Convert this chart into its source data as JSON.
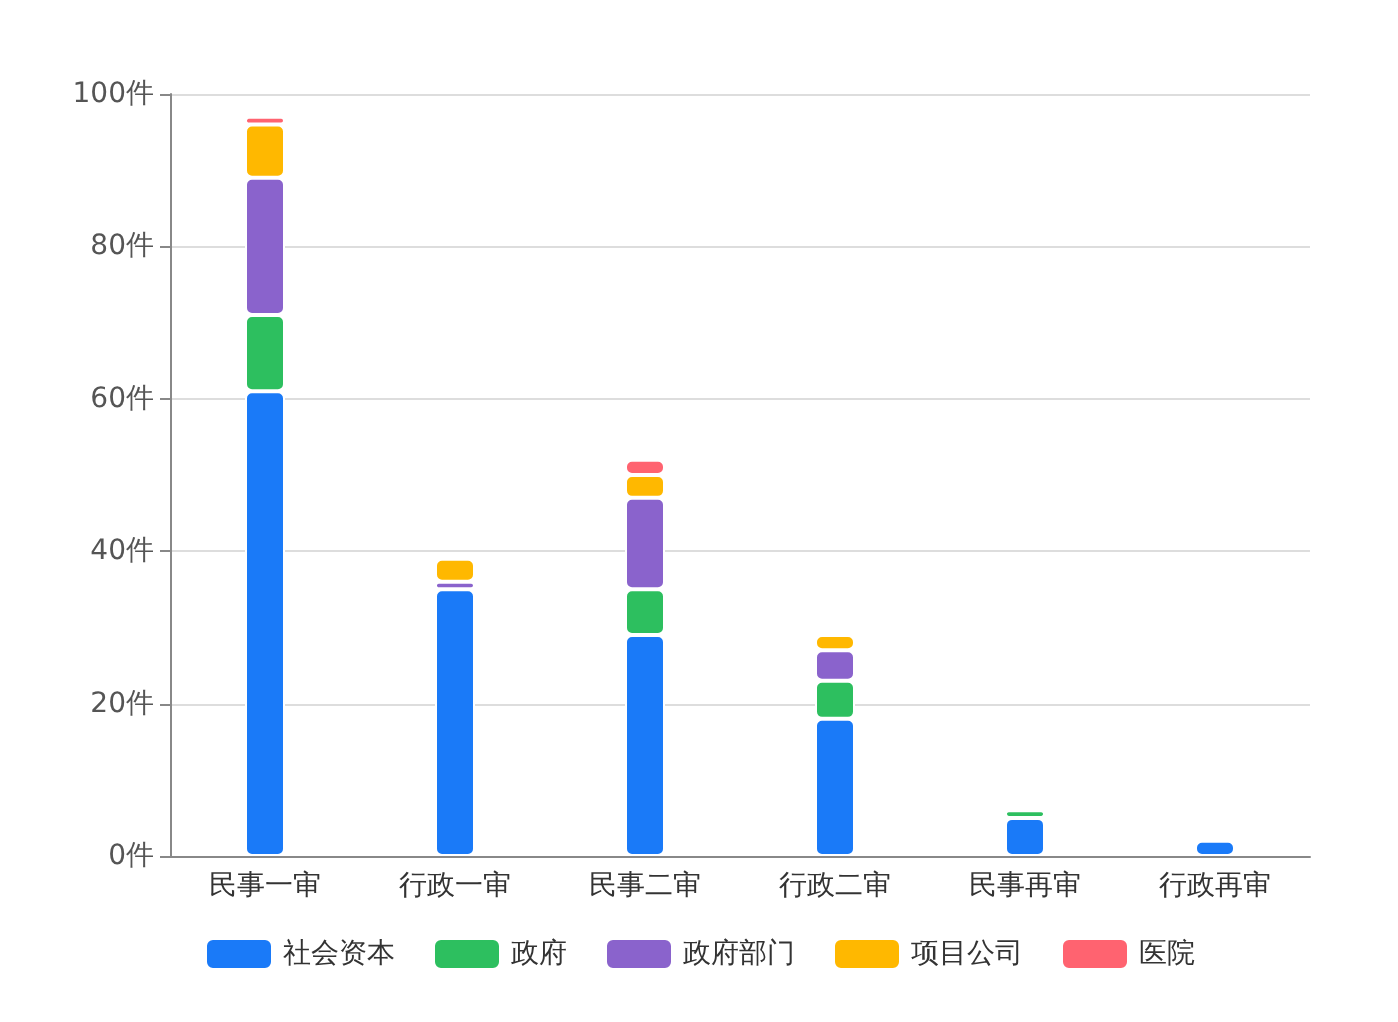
{
  "chart_data": {
    "type": "bar",
    "stacked": true,
    "categories": [
      "民事一审",
      "行政一审",
      "民事二审",
      "行政二审",
      "民事再审",
      "行政再审"
    ],
    "series": [
      {
        "name": "社会资本",
        "color": "#1a7af8",
        "values": [
          61,
          35,
          29,
          18,
          5,
          2
        ]
      },
      {
        "name": "政府",
        "color": "#2dbf5f",
        "values": [
          10,
          null,
          6,
          5,
          1,
          null
        ]
      },
      {
        "name": "政府部门",
        "color": "#8a63cc",
        "values": [
          18,
          1,
          12,
          4,
          null,
          null
        ]
      },
      {
        "name": "项目公司",
        "color": "#ffb800",
        "values": [
          7,
          3,
          3,
          2,
          null,
          null
        ]
      },
      {
        "name": "医院",
        "color": "#ff6370",
        "values": [
          1,
          null,
          2,
          null,
          null,
          null
        ]
      }
    ],
    "ylim": [
      0,
      100
    ],
    "yticks": [
      {
        "value": 0,
        "label": "0件"
      },
      {
        "value": 20,
        "label": "20件"
      },
      {
        "value": 40,
        "label": "40件"
      },
      {
        "value": 60,
        "label": "60件"
      },
      {
        "value": 80,
        "label": "80件"
      },
      {
        "value": 100,
        "label": "100件"
      }
    ],
    "grid": "y",
    "legend": "bottom"
  }
}
